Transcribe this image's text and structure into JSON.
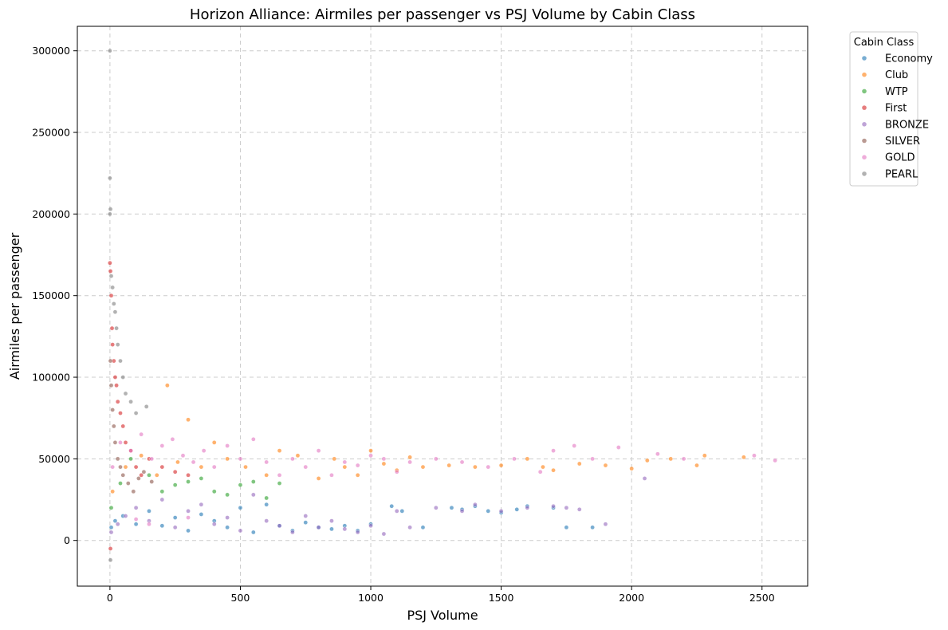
{
  "chart_data": {
    "type": "scatter",
    "title": "Horizon Alliance: Airmiles per passenger vs PSJ Volume by Cabin Class",
    "xlabel": "PSJ Volume",
    "ylabel": "Airmiles per passenger",
    "xlim": [
      -125,
      2675
    ],
    "ylim": [
      -28000,
      315000
    ],
    "x_ticks": [
      0,
      500,
      1000,
      1500,
      2000,
      2500
    ],
    "y_ticks": [
      0,
      50000,
      100000,
      150000,
      200000,
      250000,
      300000
    ],
    "grid": true,
    "legend_position": "outside-top-right",
    "legend_title": "Cabin Class",
    "series": [
      {
        "name": "Economy",
        "color": "#1f77b4",
        "points": [
          [
            5,
            8000
          ],
          [
            20,
            12000
          ],
          [
            50,
            15000
          ],
          [
            100,
            10000
          ],
          [
            150,
            18000
          ],
          [
            200,
            9000
          ],
          [
            250,
            14000
          ],
          [
            300,
            6000
          ],
          [
            350,
            16000
          ],
          [
            400,
            12000
          ],
          [
            450,
            8000
          ],
          [
            500,
            20000
          ],
          [
            550,
            5000
          ],
          [
            600,
            22000
          ],
          [
            650,
            9000
          ],
          [
            700,
            6000
          ],
          [
            750,
            11000
          ],
          [
            800,
            8000
          ],
          [
            850,
            7000
          ],
          [
            900,
            9000
          ],
          [
            950,
            6000
          ],
          [
            1000,
            10000
          ],
          [
            1080,
            21000
          ],
          [
            1120,
            18000
          ],
          [
            1200,
            8000
          ],
          [
            1310,
            20000
          ],
          [
            1350,
            19000
          ],
          [
            1400,
            21000
          ],
          [
            1450,
            18000
          ],
          [
            1500,
            17000
          ],
          [
            1560,
            19000
          ],
          [
            1600,
            21000
          ],
          [
            1700,
            20000
          ],
          [
            1750,
            8000
          ],
          [
            1850,
            8000
          ]
        ]
      },
      {
        "name": "Club",
        "color": "#ff7f0e",
        "points": [
          [
            10,
            30000
          ],
          [
            60,
            45000
          ],
          [
            120,
            52000
          ],
          [
            180,
            40000
          ],
          [
            220,
            95000
          ],
          [
            260,
            48000
          ],
          [
            300,
            74000
          ],
          [
            350,
            45000
          ],
          [
            400,
            60000
          ],
          [
            450,
            50000
          ],
          [
            520,
            45000
          ],
          [
            600,
            40000
          ],
          [
            650,
            55000
          ],
          [
            720,
            52000
          ],
          [
            800,
            38000
          ],
          [
            860,
            50000
          ],
          [
            900,
            45000
          ],
          [
            950,
            40000
          ],
          [
            1000,
            55000
          ],
          [
            1050,
            47000
          ],
          [
            1100,
            43000
          ],
          [
            1150,
            51000
          ],
          [
            1200,
            45000
          ],
          [
            1300,
            46000
          ],
          [
            1400,
            45000
          ],
          [
            1500,
            46000
          ],
          [
            1600,
            50000
          ],
          [
            1660,
            45000
          ],
          [
            1700,
            43000
          ],
          [
            1800,
            47000
          ],
          [
            1900,
            46000
          ],
          [
            2000,
            44000
          ],
          [
            2060,
            49000
          ],
          [
            2150,
            50000
          ],
          [
            2250,
            46000
          ],
          [
            2280,
            52000
          ],
          [
            2430,
            51000
          ]
        ]
      },
      {
        "name": "WTP",
        "color": "#2ca02c",
        "points": [
          [
            5,
            20000
          ],
          [
            40,
            35000
          ],
          [
            80,
            50000
          ],
          [
            150,
            40000
          ],
          [
            200,
            30000
          ],
          [
            250,
            34000
          ],
          [
            300,
            36000
          ],
          [
            350,
            38000
          ],
          [
            400,
            30000
          ],
          [
            450,
            28000
          ],
          [
            500,
            34000
          ],
          [
            550,
            36000
          ],
          [
            600,
            26000
          ],
          [
            650,
            35000
          ]
        ]
      },
      {
        "name": "First",
        "color": "#d62728",
        "points": [
          [
            0,
            170000
          ],
          [
            2,
            165000
          ],
          [
            5,
            150000
          ],
          [
            8,
            130000
          ],
          [
            10,
            120000
          ],
          [
            15,
            110000
          ],
          [
            20,
            100000
          ],
          [
            25,
            95000
          ],
          [
            30,
            85000
          ],
          [
            40,
            78000
          ],
          [
            50,
            70000
          ],
          [
            60,
            60000
          ],
          [
            80,
            55000
          ],
          [
            100,
            45000
          ],
          [
            120,
            40000
          ],
          [
            150,
            50000
          ],
          [
            200,
            45000
          ],
          [
            250,
            42000
          ],
          [
            300,
            40000
          ],
          [
            2,
            -5000
          ]
        ]
      },
      {
        "name": "BRONZE",
        "color": "#9467bd",
        "points": [
          [
            5,
            5000
          ],
          [
            30,
            10000
          ],
          [
            60,
            15000
          ],
          [
            100,
            20000
          ],
          [
            150,
            12000
          ],
          [
            200,
            25000
          ],
          [
            250,
            8000
          ],
          [
            300,
            18000
          ],
          [
            350,
            22000
          ],
          [
            400,
            10000
          ],
          [
            450,
            14000
          ],
          [
            500,
            6000
          ],
          [
            550,
            28000
          ],
          [
            600,
            12000
          ],
          [
            650,
            9000
          ],
          [
            700,
            5000
          ],
          [
            750,
            15000
          ],
          [
            800,
            8000
          ],
          [
            850,
            12000
          ],
          [
            900,
            7000
          ],
          [
            950,
            5000
          ],
          [
            1000,
            9000
          ],
          [
            1050,
            4000
          ],
          [
            1100,
            18000
          ],
          [
            1150,
            8000
          ],
          [
            1250,
            20000
          ],
          [
            1350,
            18000
          ],
          [
            1400,
            22000
          ],
          [
            1500,
            18000
          ],
          [
            1600,
            20000
          ],
          [
            1700,
            21000
          ],
          [
            1750,
            20000
          ],
          [
            1800,
            19000
          ],
          [
            1900,
            10000
          ],
          [
            2050,
            38000
          ]
        ]
      },
      {
        "name": "SILVER",
        "color": "#8c564b",
        "points": [
          [
            2,
            110000
          ],
          [
            5,
            95000
          ],
          [
            10,
            80000
          ],
          [
            15,
            70000
          ],
          [
            20,
            60000
          ],
          [
            30,
            50000
          ],
          [
            40,
            45000
          ],
          [
            50,
            40000
          ],
          [
            70,
            35000
          ],
          [
            90,
            30000
          ],
          [
            110,
            38000
          ],
          [
            130,
            42000
          ],
          [
            160,
            36000
          ]
        ]
      },
      {
        "name": "GOLD",
        "color": "#e377c2",
        "points": [
          [
            10,
            45000
          ],
          [
            40,
            60000
          ],
          [
            80,
            55000
          ],
          [
            120,
            65000
          ],
          [
            160,
            50000
          ],
          [
            200,
            58000
          ],
          [
            240,
            62000
          ],
          [
            280,
            52000
          ],
          [
            320,
            48000
          ],
          [
            360,
            55000
          ],
          [
            400,
            45000
          ],
          [
            450,
            58000
          ],
          [
            500,
            50000
          ],
          [
            550,
            62000
          ],
          [
            600,
            48000
          ],
          [
            650,
            40000
          ],
          [
            700,
            50000
          ],
          [
            750,
            45000
          ],
          [
            800,
            55000
          ],
          [
            850,
            40000
          ],
          [
            900,
            48000
          ],
          [
            950,
            46000
          ],
          [
            1000,
            52000
          ],
          [
            1050,
            50000
          ],
          [
            1100,
            42000
          ],
          [
            1150,
            48000
          ],
          [
            1250,
            50000
          ],
          [
            1350,
            48000
          ],
          [
            1450,
            45000
          ],
          [
            1550,
            50000
          ],
          [
            1650,
            42000
          ],
          [
            1700,
            55000
          ],
          [
            1780,
            58000
          ],
          [
            1850,
            50000
          ],
          [
            1950,
            57000
          ],
          [
            2100,
            53000
          ],
          [
            2200,
            50000
          ],
          [
            2470,
            52000
          ],
          [
            2550,
            49000
          ],
          [
            150,
            10000
          ],
          [
            300,
            14000
          ],
          [
            100,
            13000
          ]
        ]
      },
      {
        "name": "PEARL",
        "color": "#7f7f7f",
        "points": [
          [
            0,
            300000
          ],
          [
            0,
            222000
          ],
          [
            2,
            203000
          ],
          [
            0,
            200000
          ],
          [
            5,
            162000
          ],
          [
            10,
            155000
          ],
          [
            15,
            145000
          ],
          [
            20,
            140000
          ],
          [
            25,
            130000
          ],
          [
            30,
            120000
          ],
          [
            40,
            110000
          ],
          [
            50,
            100000
          ],
          [
            60,
            90000
          ],
          [
            80,
            85000
          ],
          [
            100,
            78000
          ],
          [
            140,
            82000
          ],
          [
            2,
            -12000
          ]
        ]
      }
    ]
  }
}
